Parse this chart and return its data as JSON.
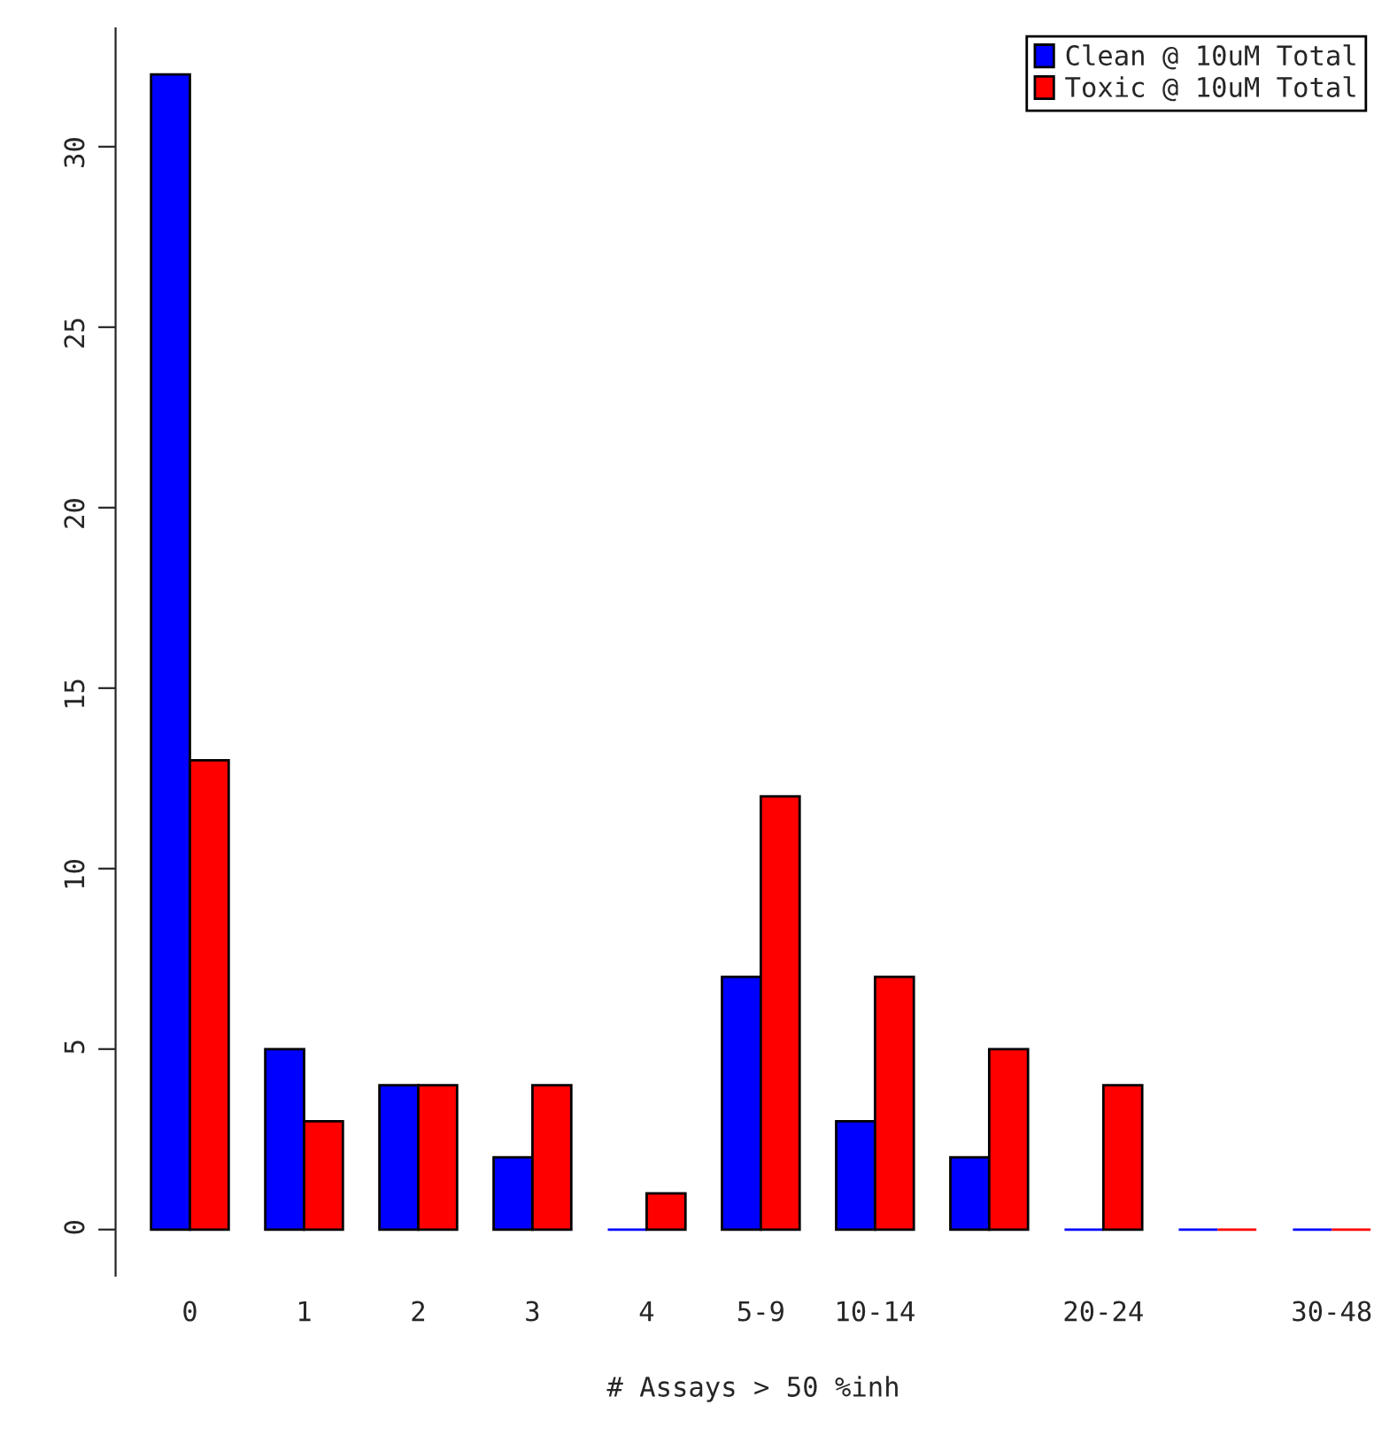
{
  "chart_data": {
    "type": "bar",
    "xlabel": "# Assays > 50 %inh",
    "categories": [
      "0",
      "1",
      "2",
      "3",
      "4",
      "5-9",
      "10-14",
      null,
      "20-24",
      null,
      "30-48"
    ],
    "series": [
      {
        "name": "Clean @ 10uM Total",
        "color": "#0000ff",
        "values": [
          32,
          5,
          4,
          2,
          0,
          7,
          3,
          2,
          0,
          0,
          0
        ]
      },
      {
        "name": "Toxic @ 10uM Total",
        "color": "#ff0000",
        "values": [
          13,
          3,
          4,
          4,
          1,
          12,
          7,
          5,
          4,
          0,
          0
        ]
      }
    ],
    "ylim": [
      -1.28,
      33.28
    ],
    "yticks": [
      0,
      5,
      10,
      15,
      20,
      25,
      30
    ],
    "tick_labels": "y",
    "grid": false,
    "legend": "top right"
  }
}
